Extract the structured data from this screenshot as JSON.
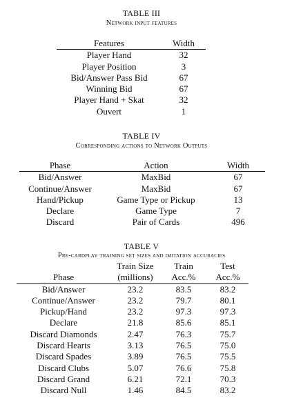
{
  "table3": {
    "label": "TABLE III",
    "caption": "Network input features",
    "headers": [
      "Features",
      "Width"
    ],
    "rows": [
      [
        "Player Hand",
        "32"
      ],
      [
        "Player Position",
        "3"
      ],
      [
        "Bid/Answer Pass Bid",
        "67"
      ],
      [
        "Winning Bid",
        "67"
      ],
      [
        "Player Hand + Skat",
        "32"
      ],
      [
        "Ouvert",
        "1"
      ]
    ]
  },
  "table4": {
    "label": "TABLE IV",
    "caption": "Corresponding actions to Network Outputs",
    "headers": [
      "Phase",
      "Action",
      "Width"
    ],
    "rows": [
      [
        "Bid/Answer",
        "MaxBid",
        "67"
      ],
      [
        "Continue/Answer",
        "MaxBid",
        "67"
      ],
      [
        "Hand/Pickup",
        "Game Type or Pickup",
        "13"
      ],
      [
        "Declare",
        "Game Type",
        "7"
      ],
      [
        "Discard",
        "Pair of Cards",
        "496"
      ]
    ]
  },
  "table5": {
    "label": "TABLE V",
    "caption": "Pre-cardplay training set sizes and imitation accuracies",
    "header_top": [
      "",
      "Train Size",
      "Train",
      "Test"
    ],
    "headers": [
      "Phase",
      "(millions)",
      "Acc.%",
      "Acc.%"
    ],
    "rows": [
      [
        "Bid/Answer",
        "23.2",
        "83.5",
        "83.2"
      ],
      [
        "Continue/Answer",
        "23.2",
        "79.7",
        "80.1"
      ],
      [
        "Pickup/Hand",
        "23.2",
        "97.3",
        "97.3"
      ],
      [
        "Declare",
        "21.8",
        "85.6",
        "85.1"
      ],
      [
        "Discard Diamonds",
        "2.47",
        "76.3",
        "75.7"
      ],
      [
        "Discard Hearts",
        "3.13",
        "76.5",
        "75.0"
      ],
      [
        "Discard Spades",
        "3.89",
        "76.5",
        "75.5"
      ],
      [
        "Discard Clubs",
        "5.07",
        "76.6",
        "75.8"
      ],
      [
        "Discard Grand",
        "6.21",
        "72.1",
        "70.3"
      ],
      [
        "Discard Null",
        "1.46",
        "84.5",
        "83.2"
      ]
    ]
  }
}
